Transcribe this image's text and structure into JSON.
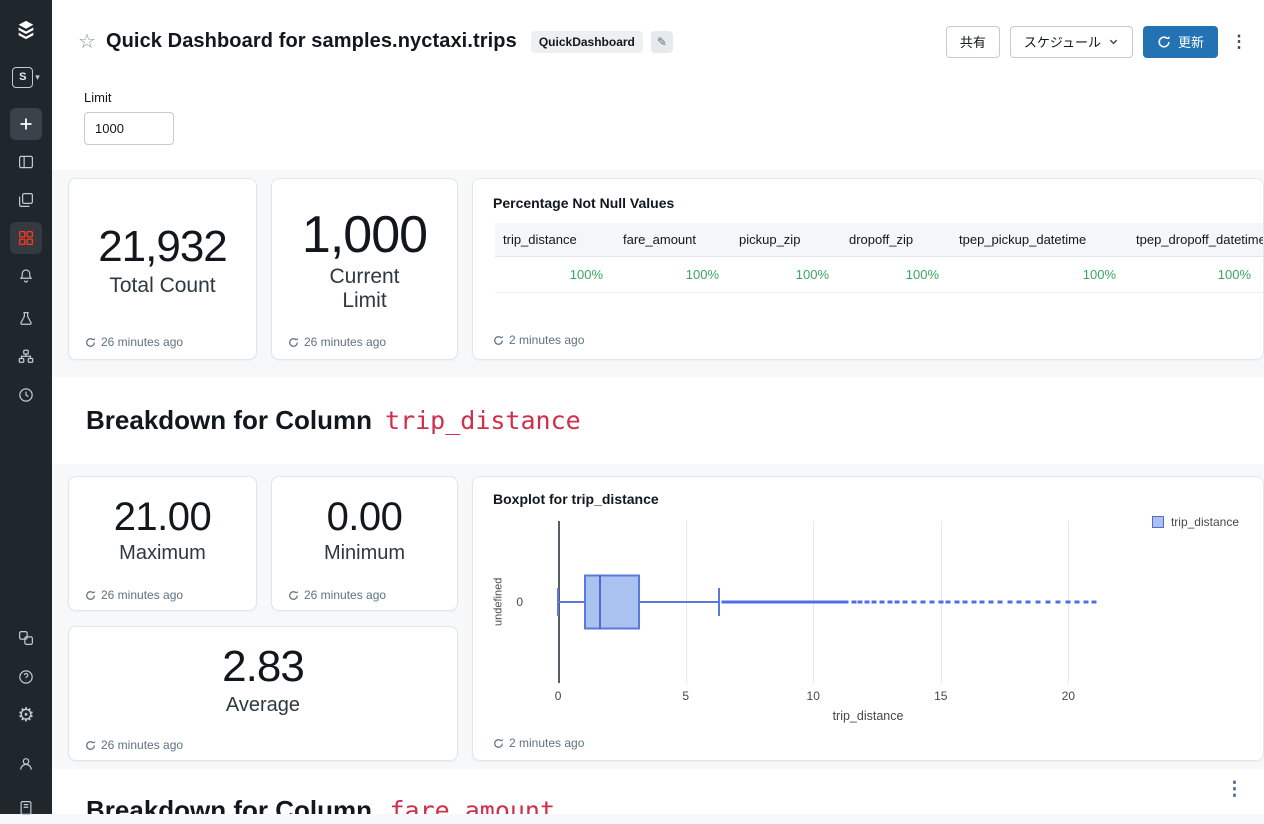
{
  "glyphs": {
    "star": "☆",
    "edit": "✎",
    "kebab": "⋮",
    "caret": "▾"
  },
  "colors": {
    "accent_blue": "#2272B4",
    "code_red": "#CE2F4B",
    "value_green": "#3BA662",
    "sidebar_active": "#FF3621",
    "box_blue": "#5B79D9"
  },
  "sidebar": {
    "items": [
      {
        "name": "databricks-logo"
      },
      {
        "name": "workspace-switcher",
        "label": "S"
      },
      {
        "name": "new"
      },
      {
        "name": "workspace"
      },
      {
        "name": "recents"
      },
      {
        "name": "dashboards",
        "active": true
      },
      {
        "name": "alerts"
      },
      {
        "name": "experiments"
      },
      {
        "name": "workflows"
      },
      {
        "name": "query-history"
      },
      {
        "name": "partner-connect"
      },
      {
        "name": "help"
      },
      {
        "name": "settings"
      },
      {
        "name": "user"
      },
      {
        "name": "notebook-partial"
      }
    ]
  },
  "header": {
    "title": "Quick Dashboard for samples.nyctaxi.trips",
    "badge": "QuickDashboard",
    "share_label": "共有",
    "schedule_label": "スケジュール",
    "refresh_label": "更新"
  },
  "filter": {
    "label": "Limit",
    "value": "1000"
  },
  "sections": {
    "first": {
      "prefix": "Breakdown for Column",
      "code": "trip_distance"
    },
    "second": {
      "prefix": "Breakdown for Column",
      "code": "fare_amount"
    }
  },
  "widgets": {
    "total_count": {
      "value": "21,932",
      "label": "Total Count",
      "updated": "26 minutes ago"
    },
    "current_limit": {
      "value": "1,000",
      "label": "Current Limit",
      "updated": "26 minutes ago"
    },
    "not_null": {
      "title": "Percentage Not Null Values",
      "columns": [
        "trip_distance",
        "fare_amount",
        "pickup_zip",
        "dropoff_zip",
        "tpep_pickup_datetime",
        "tpep_dropoff_datetime"
      ],
      "values": [
        "100%",
        "100%",
        "100%",
        "100%",
        "100%",
        "100%"
      ],
      "updated": "2 minutes ago"
    },
    "maximum": {
      "value": "21.00",
      "label": "Maximum",
      "updated": "26 minutes ago"
    },
    "minimum": {
      "value": "0.00",
      "label": "Minimum",
      "updated": "26 minutes ago"
    },
    "average": {
      "value": "2.83",
      "label": "Average",
      "updated": "26 minutes ago"
    },
    "boxplot": {
      "title": "Boxplot for trip_distance",
      "updated": "2 minutes ago"
    }
  },
  "chart_data": {
    "type": "boxplot",
    "title": "Boxplot for trip_distance",
    "series_name": "trip_distance",
    "xlabel": "trip_distance",
    "ylabel": "undefined",
    "y_tick": "0",
    "orientation": "horizontal",
    "x_ticks": [
      0,
      5,
      10,
      15,
      20
    ],
    "x_range": [
      -1.14,
      27.0
    ],
    "grid": true,
    "legend_position": "top-right",
    "min": 0,
    "q1": 1.0,
    "median": 1.6,
    "q3": 3.2,
    "upper_whisker": 6.3,
    "max_outlier": 21.0,
    "outliers": [
      6.5,
      6.63,
      6.76,
      6.89,
      7.02,
      7.15,
      7.28,
      7.41,
      7.54,
      7.67,
      7.8,
      7.93,
      8.06,
      8.19,
      8.32,
      8.45,
      8.58,
      8.71,
      8.84,
      8.97,
      9.1,
      9.23,
      9.36,
      9.49,
      9.62,
      9.75,
      9.88,
      10.01,
      10.14,
      10.27,
      10.4,
      10.55,
      10.7,
      10.85,
      11.0,
      11.15,
      11.3,
      11.6,
      11.85,
      12.1,
      12.4,
      12.7,
      13.0,
      13.3,
      13.6,
      13.95,
      14.3,
      14.65,
      15.0,
      15.3,
      15.65,
      15.95,
      16.3,
      16.6,
      16.95,
      17.3,
      17.7,
      18.05,
      18.4,
      18.8,
      19.2,
      19.6,
      20.0,
      20.35,
      20.7,
      21.0
    ]
  }
}
